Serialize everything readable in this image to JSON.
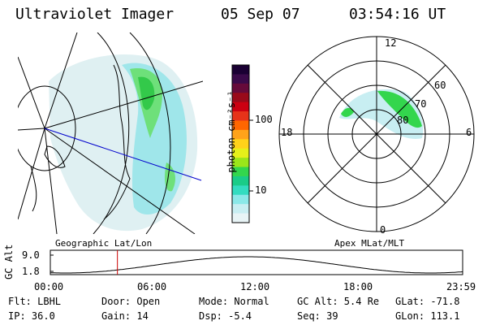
{
  "header": {
    "instrument": "Ultraviolet Imager",
    "date": "05 Sep 07",
    "time": "03:54:16 UT"
  },
  "colorbar": {
    "unit_label": "photon cm⁻²s⁻¹",
    "ticks": [
      "100",
      "10"
    ],
    "ticks_values": [
      100,
      10
    ],
    "colors": [
      "#1a0033",
      "#3a0a4a",
      "#660a3a",
      "#990a1a",
      "#cc0011",
      "#e6331a",
      "#ff6600",
      "#ffa31a",
      "#ffd21a",
      "#e6f01a",
      "#9be61a",
      "#33d64d",
      "#1acc88",
      "#33dcc0",
      "#8be8e8",
      "#c8eef2",
      "#e8f4f6"
    ]
  },
  "map_labels": {
    "geographic": "Geographic Lat/Lon",
    "apex": "Apex MLat/MLT"
  },
  "polar": {
    "mlt_top": "12",
    "mlt_bottom": "0",
    "mlt_left": "18",
    "mlt_right": "6",
    "lat_60": "60",
    "lat_70": "70",
    "lat_80": "80"
  },
  "altitude": {
    "axis_label": "GC Alt",
    "ymax": "9.0",
    "ymin": "1.8",
    "xticks": [
      "00:00",
      "06:00",
      "12:00",
      "18:00",
      "23:59"
    ],
    "current_time_hours": 3.905
  },
  "status": {
    "flt": "Flt: LBHL",
    "door": "Door: Open",
    "mode": "Mode: Normal",
    "gcalt": "GC Alt: 5.4 Re",
    "glat": "GLat: -71.8",
    "ip": "IP: 36.0",
    "gain": "Gain: 14",
    "dsp": "Dsp:   -5.4",
    "seq": "Seq: 39",
    "glon": "GLon: 113.1"
  }
}
